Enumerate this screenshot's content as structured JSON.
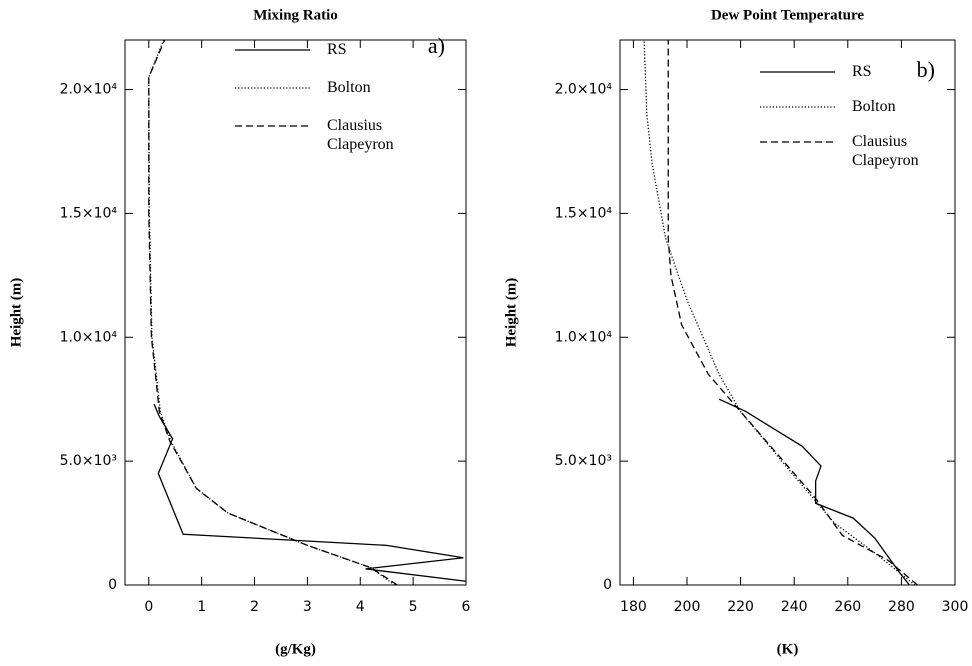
{
  "chart_data": [
    {
      "type": "line",
      "title": "Mixing Ratio",
      "x_label": "(g/Kg)",
      "y_label": "Height (m)",
      "annotation": "a)",
      "xlim": [
        -0.45,
        6
      ],
      "xticks": [
        0,
        1,
        2,
        3,
        4,
        5,
        6
      ],
      "ylim": [
        0,
        22000
      ],
      "yticks": [
        0,
        {
          "value": 5000,
          "label": "5.0×10³"
        },
        {
          "value": 10000,
          "label": "1.0×10⁴"
        },
        {
          "value": 15000,
          "label": "1.5×10⁴"
        },
        {
          "value": 20000,
          "label": "2.0×10⁴"
        }
      ],
      "series": [
        {
          "name": "RS",
          "color": "#000000",
          "style": "solid",
          "x": [
            6,
            4.1,
            5.95,
            4.5,
            0.65,
            0.18,
            0.45,
            0.2,
            0.1
          ],
          "values": [
            150,
            650,
            1100,
            1600,
            2050,
            4500,
            5900,
            6800,
            7300
          ]
        },
        {
          "name": "Bolton",
          "color": "#000000",
          "style": "dotted",
          "x": [
            4.65,
            4.2,
            3,
            1.5,
            0.9,
            0.42,
            0.22,
            0.06,
            0.01,
            0.0,
            0.28
          ],
          "values": [
            0,
            700,
            1600,
            2900,
            3900,
            5800,
            7000,
            10000,
            15000,
            20500,
            22000
          ]
        },
        {
          "name": "Clausius Clapeyron",
          "color": "#000000",
          "style": "dashed",
          "x": [
            4.7,
            4.2,
            3,
            1.5,
            0.9,
            0.4,
            0.2,
            0.05,
            0.0,
            0.0,
            0.3
          ],
          "values": [
            0,
            700,
            1600,
            2900,
            3900,
            5800,
            7000,
            10000,
            15000,
            20500,
            22000
          ]
        }
      ]
    },
    {
      "type": "line",
      "title": "Dew Point Temperature",
      "x_label": "(K)",
      "y_label": "Height (m)",
      "annotation": "b)",
      "xlim": [
        175,
        300
      ],
      "xticks": [
        180,
        200,
        220,
        240,
        260,
        280,
        300
      ],
      "ylim": [
        0,
        22000
      ],
      "yticks": [
        0,
        {
          "value": 5000,
          "label": "5.0×10³"
        },
        {
          "value": 10000,
          "label": "1.0×10⁴"
        },
        {
          "value": 15000,
          "label": "1.5×10⁴"
        },
        {
          "value": 20000,
          "label": "2.0×10⁴"
        }
      ],
      "series": [
        {
          "name": "RS",
          "color": "#000000",
          "style": "solid",
          "x": [
            283,
            280,
            270,
            262,
            248,
            248,
            250,
            243,
            222,
            212
          ],
          "values": [
            0,
            400,
            1900,
            2700,
            3300,
            4200,
            4800,
            5600,
            7000,
            7500
          ]
        },
        {
          "name": "Bolton",
          "color": "#000000",
          "style": "dotted",
          "x": [
            285,
            270,
            255,
            240,
            220,
            212,
            200,
            192,
            187,
            185,
            184
          ],
          "values": [
            0,
            1300,
            2500,
            4400,
            7000,
            8500,
            11500,
            14000,
            17000,
            19000,
            22000
          ]
        },
        {
          "name": "Clausius Clapeyron",
          "color": "#000000",
          "style": "dashed",
          "x": [
            286,
            275,
            258,
            248,
            240,
            232,
            220,
            208,
            198,
            194,
            193,
            193
          ],
          "values": [
            0,
            1000,
            2000,
            3500,
            4500,
            5500,
            7000,
            8500,
            10500,
            12500,
            14000,
            22000
          ]
        }
      ]
    }
  ]
}
